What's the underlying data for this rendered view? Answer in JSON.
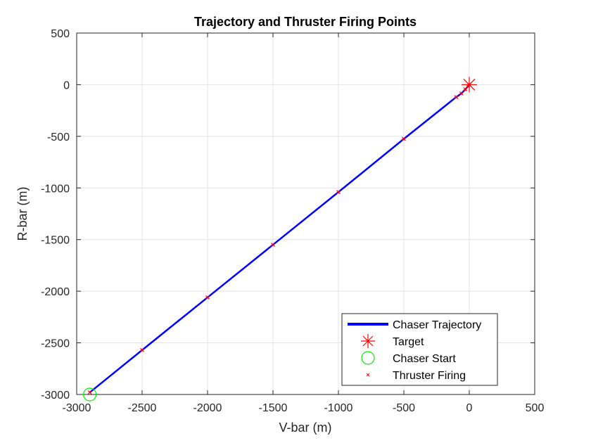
{
  "chart_data": {
    "type": "line",
    "title": "Trajectory and Thruster Firing Points",
    "xlabel": "V-bar (m)",
    "ylabel": "R-bar (m)",
    "xlim": [
      -3000,
      500
    ],
    "ylim": [
      -3000,
      500
    ],
    "xticks": [
      -3000,
      -2500,
      -2000,
      -1500,
      -1000,
      -500,
      0,
      500
    ],
    "yticks": [
      -3000,
      -2500,
      -2000,
      -1500,
      -1000,
      -500,
      0,
      500
    ],
    "xtick_labels": [
      "-3000",
      "-2500",
      "-2000",
      "-1500",
      "-1000",
      "-500",
      "0",
      "500"
    ],
    "ytick_labels": [
      "-3000",
      "-2500",
      "-2000",
      "-1500",
      "-1000",
      "-500",
      "0",
      "500"
    ],
    "grid": true,
    "legend_position": "bottom-right",
    "series": [
      {
        "name": "Chaser Trajectory",
        "kind": "line",
        "color": "#0000ff",
        "x": [
          -2900,
          -2500,
          -2000,
          -1500,
          -1000,
          -500,
          -100,
          -60,
          -30,
          -10,
          0
        ],
        "y": [
          -2980,
          -2570,
          -2060,
          -1550,
          -1040,
          -525,
          -120,
          -85,
          -45,
          -15,
          0
        ]
      },
      {
        "name": "Target",
        "kind": "marker",
        "marker": "star",
        "color": "#ff0000",
        "x": [
          0
        ],
        "y": [
          0
        ]
      },
      {
        "name": "Chaser Start",
        "kind": "marker",
        "marker": "circle",
        "color": "#00cc00",
        "x": [
          -2900
        ],
        "y": [
          -3000
        ]
      },
      {
        "name": "Thruster Firing",
        "kind": "marker",
        "marker": "x",
        "color": "#ff0000",
        "x": [
          -2900,
          -2500,
          -2000,
          -1500,
          -1000,
          -500,
          -100,
          -60,
          -30,
          -10,
          0
        ],
        "y": [
          -2980,
          -2570,
          -2060,
          -1550,
          -1040,
          -525,
          -120,
          -85,
          -45,
          -15,
          0
        ]
      }
    ]
  }
}
